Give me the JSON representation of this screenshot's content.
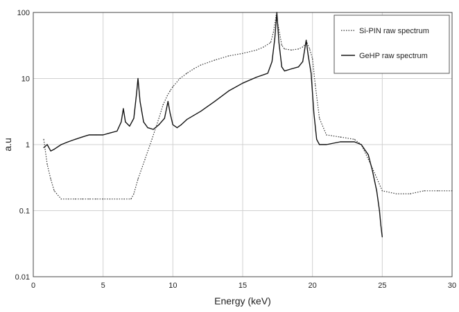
{
  "chart_data": {
    "type": "line",
    "title": "",
    "xlabel": "Energy (keV)",
    "ylabel": "a.u",
    "xlim": [
      0,
      30
    ],
    "ylim": [
      0.01,
      100
    ],
    "y_scale": "log",
    "grid": true,
    "legend_position": "top-right",
    "x_ticks": [
      0,
      5,
      10,
      15,
      20,
      25,
      30
    ],
    "x_tick_labels": [
      "0",
      "5",
      "10",
      "15",
      "20",
      "25",
      "30"
    ],
    "y_ticks": [
      0.01,
      0.1,
      1,
      10,
      100
    ],
    "y_tick_labels": [
      "0.01",
      "0.1",
      "1",
      "10",
      "100"
    ],
    "series": [
      {
        "name": "Si-PIN raw spectrum",
        "style": "dotted",
        "color": "#333333",
        "x": [
          0.75,
          1.0,
          1.25,
          1.5,
          2.0,
          2.5,
          3.0,
          3.5,
          4.0,
          4.5,
          5.0,
          5.5,
          6.0,
          6.5,
          7.0,
          7.2,
          7.5,
          8.0,
          8.5,
          9.0,
          9.3,
          9.6,
          9.8,
          10.0,
          10.5,
          11.0,
          11.5,
          12.0,
          13.0,
          14.0,
          15.0,
          16.0,
          16.5,
          17.0,
          17.2,
          17.4,
          17.6,
          17.8,
          18.0,
          18.5,
          19.0,
          19.3,
          19.6,
          19.8,
          20.0,
          20.2,
          20.5,
          21.0,
          22.0,
          23.0,
          23.5,
          24.0,
          24.5,
          25.0,
          26.0,
          27.0,
          28.0,
          29.0,
          30.0
        ],
        "y": [
          1.2,
          0.5,
          0.3,
          0.2,
          0.15,
          0.15,
          0.15,
          0.15,
          0.15,
          0.15,
          0.15,
          0.15,
          0.15,
          0.15,
          0.15,
          0.18,
          0.3,
          0.6,
          1.2,
          2.5,
          4.0,
          5.5,
          6.5,
          7.5,
          10,
          12,
          14,
          16,
          19,
          22,
          24,
          27,
          30,
          35,
          50,
          90,
          55,
          32,
          28,
          27,
          28,
          30,
          35,
          28,
          20,
          8,
          2.5,
          1.4,
          1.3,
          1.2,
          1.0,
          0.6,
          0.35,
          0.2,
          0.18,
          0.18,
          0.2,
          0.2,
          0.2
        ]
      },
      {
        "name": "GeHP raw spectrum",
        "style": "solid",
        "color": "#111111",
        "x": [
          0.75,
          1.0,
          1.25,
          1.5,
          2.0,
          2.5,
          3.0,
          3.5,
          4.0,
          4.5,
          5.0,
          5.5,
          6.0,
          6.3,
          6.45,
          6.6,
          6.9,
          7.2,
          7.4,
          7.5,
          7.65,
          7.9,
          8.2,
          8.6,
          9.0,
          9.4,
          9.65,
          9.8,
          10.0,
          10.3,
          10.6,
          11.0,
          12.0,
          13.0,
          14.0,
          15.0,
          16.0,
          16.8,
          17.1,
          17.3,
          17.45,
          17.6,
          17.8,
          18.0,
          18.5,
          19.0,
          19.3,
          19.55,
          19.7,
          19.9,
          20.1,
          20.3,
          20.5,
          21.0,
          22.0,
          23.0,
          23.5,
          24.0,
          24.3,
          24.6,
          24.8,
          24.9,
          25.0
        ],
        "y": [
          0.9,
          1.0,
          0.8,
          0.85,
          1.0,
          1.1,
          1.2,
          1.3,
          1.4,
          1.4,
          1.4,
          1.5,
          1.6,
          2.2,
          3.5,
          2.2,
          1.9,
          2.5,
          6.0,
          10,
          4.5,
          2.2,
          1.8,
          1.7,
          2.0,
          2.5,
          4.5,
          3.0,
          2.0,
          1.8,
          2.0,
          2.4,
          3.2,
          4.5,
          6.5,
          8.5,
          10.5,
          12,
          18,
          40,
          100,
          35,
          15,
          13,
          14,
          15,
          18,
          38,
          22,
          12,
          3.0,
          1.2,
          1.0,
          1.0,
          1.1,
          1.1,
          1.0,
          0.7,
          0.4,
          0.2,
          0.1,
          0.06,
          0.04
        ]
      }
    ]
  }
}
